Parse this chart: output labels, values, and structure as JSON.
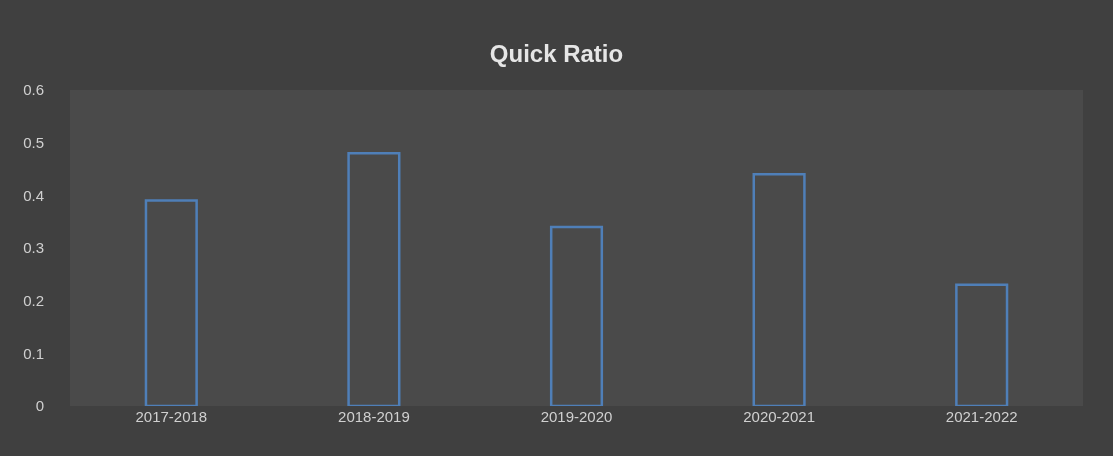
{
  "chart_data": {
    "type": "bar",
    "title": "Quick Ratio",
    "categories": [
      "2017-2018",
      "2018-2019",
      "2019-2020",
      "2020-2021",
      "2021-2022"
    ],
    "values": [
      0.39,
      0.48,
      0.34,
      0.44,
      0.23
    ],
    "color": "#4f7fb8",
    "ylim": [
      0,
      0.6
    ],
    "yticks": [
      0,
      0.1,
      0.2,
      0.3,
      0.4,
      0.5,
      0.6
    ],
    "grid": false,
    "legend": false
  }
}
